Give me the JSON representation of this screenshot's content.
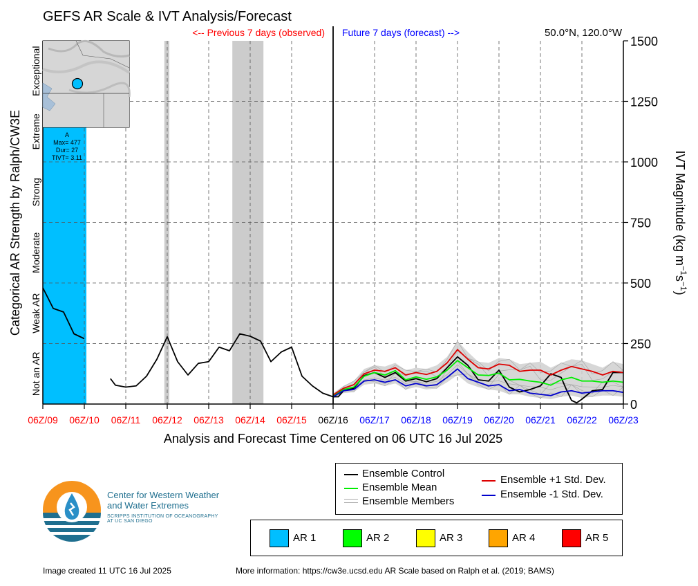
{
  "header": {
    "title": "GEFS AR Scale & IVT Analysis/Forecast",
    "prev_label": "<-- Previous 7 days (observed)",
    "future_label": "Future 7 days (forecast) -->",
    "location": "50.0°N, 120.0°W"
  },
  "colors": {
    "observed": "#ff0000",
    "forecast": "#0000ff",
    "ar1": "#00bfff",
    "ar2": "#00ff00",
    "ar3": "#ffff00",
    "ar4": "#ffa500",
    "ar5": "#ff0000",
    "shade": "#cccccc",
    "control": "#000000",
    "mean": "#00ee00",
    "plus_sd": "#dd0000",
    "minus_sd": "#0000cc",
    "members": "#aaaaaa"
  },
  "chart_data": {
    "type": "line",
    "xlabel": "Analysis and Forecast Time Centered on 06 UTC 16 Jul 2025",
    "ylabel_left": "Categorical AR Strength by Ralph/CW3E",
    "ylabel_right": "IVT Magnitude (kg m^-1 s^-1)",
    "ylim": [
      0,
      1500
    ],
    "xlim": [
      0,
      14
    ],
    "y_ticks": [
      0,
      250,
      500,
      750,
      1000,
      1250,
      1500
    ],
    "x_ticks": [
      {
        "x": 0,
        "label": "06Z/09",
        "kind": "observed"
      },
      {
        "x": 1,
        "label": "06Z/10",
        "kind": "observed"
      },
      {
        "x": 2,
        "label": "06Z/11",
        "kind": "observed"
      },
      {
        "x": 3,
        "label": "06Z/12",
        "kind": "observed"
      },
      {
        "x": 4,
        "label": "06Z/13",
        "kind": "observed"
      },
      {
        "x": 5,
        "label": "06Z/14",
        "kind": "observed"
      },
      {
        "x": 6,
        "label": "06Z/15",
        "kind": "observed"
      },
      {
        "x": 7,
        "label": "06Z/16",
        "kind": "now"
      },
      {
        "x": 8,
        "label": "06Z/17",
        "kind": "forecast"
      },
      {
        "x": 9,
        "label": "06Z/18",
        "kind": "forecast"
      },
      {
        "x": 10,
        "label": "06Z/19",
        "kind": "forecast"
      },
      {
        "x": 11,
        "label": "06Z/20",
        "kind": "forecast"
      },
      {
        "x": 12,
        "label": "06Z/21",
        "kind": "forecast"
      },
      {
        "x": 13,
        "label": "06Z/22",
        "kind": "forecast"
      },
      {
        "x": 14,
        "label": "06Z/23",
        "kind": "forecast"
      }
    ],
    "categories": [
      {
        "label": "Not an AR",
        "ymin": 0,
        "ymax": 250
      },
      {
        "label": "Weak AR",
        "ymin": 250,
        "ymax": 500
      },
      {
        "label": "Moderate",
        "ymin": 500,
        "ymax": 750
      },
      {
        "label": "Strong",
        "ymin": 750,
        "ymax": 1000
      },
      {
        "label": "Extreme",
        "ymin": 1000,
        "ymax": 1250
      },
      {
        "label": "Exceptional",
        "ymin": 1250,
        "ymax": 1500
      }
    ],
    "ar_event": {
      "level": "AR 1",
      "x_start": 0,
      "x_end": 1.05,
      "label_lines": [
        "A",
        "Max= 477",
        "Dur= 27",
        "TIVT= 3.11"
      ]
    },
    "shaded_periods": [
      {
        "x_start": 2.93,
        "x_end": 3.05
      },
      {
        "x_start": 4.57,
        "x_end": 5.32
      }
    ],
    "now_x": 7,
    "series": [
      {
        "name": "Ensemble Control",
        "color": "#000000",
        "segments": [
          {
            "x": [
              0,
              0.25,
              0.5,
              0.75,
              1.0
            ],
            "y": [
              480,
              395,
              380,
              290,
              270
            ]
          },
          {
            "x": [
              1.63,
              1.75,
              2.0,
              2.25,
              2.5,
              2.75,
              3.0,
              3.25,
              3.5,
              3.75,
              4.0,
              4.25,
              4.5,
              4.75,
              5.0,
              5.25,
              5.5,
              5.75,
              6.0,
              6.25,
              6.5,
              6.75,
              7.0
            ],
            "y": [
              105,
              78,
              70,
              75,
              115,
              185,
              278,
              175,
              120,
              168,
              175,
              235,
              220,
              290,
              280,
              260,
              175,
              215,
              235,
              115,
              75,
              45,
              30
            ]
          }
        ]
      },
      {
        "name": "Ensemble Control (forecast)",
        "color": "#000000",
        "segments": [
          {
            "x": [
              7.0,
              7.125,
              7.25,
              7.5,
              7.75,
              8.0,
              8.25,
              8.5,
              8.75,
              9.0,
              9.25,
              9.5,
              9.75,
              10.0,
              10.25,
              10.5,
              10.75,
              11.0,
              11.25,
              11.5,
              11.75,
              12.0,
              12.25,
              12.5,
              12.625,
              12.75,
              12.875,
              13.0,
              13.25,
              13.5,
              13.75,
              14.0
            ],
            "y": [
              30,
              30,
              55,
              65,
              118,
              130,
              110,
              130,
              95,
              105,
              92,
              105,
              150,
              195,
              160,
              100,
              95,
              140,
              70,
              50,
              60,
              75,
              125,
              110,
              60,
              15,
              5,
              20,
              55,
              60,
              130,
              130
            ]
          }
        ]
      },
      {
        "name": "Ensemble Mean",
        "color": "#00ee00",
        "segments": [
          {
            "x": [
              7.0,
              7.25,
              7.5,
              7.75,
              8.0,
              8.25,
              8.5,
              8.75,
              9.0,
              9.25,
              9.5,
              9.75,
              10.0,
              10.25,
              10.5,
              10.75,
              11.0,
              11.25,
              11.5,
              11.75,
              12.0,
              12.25,
              12.5,
              12.75,
              13.0,
              13.25,
              13.5,
              13.75,
              14.0
            ],
            "y": [
              35,
              60,
              70,
              115,
              130,
              120,
              138,
              100,
              112,
              102,
              112,
              140,
              180,
              150,
              120,
              118,
              128,
              100,
              102,
              95,
              90,
              78,
              100,
              110,
              95,
              95,
              90,
              95,
              90
            ]
          }
        ]
      },
      {
        "name": "Ensemble +1 Std. Dev.",
        "color": "#dd0000",
        "segments": [
          {
            "x": [
              7.0,
              7.25,
              7.5,
              7.75,
              8.0,
              8.25,
              8.5,
              8.75,
              9.0,
              9.25,
              9.5,
              9.75,
              10.0,
              10.25,
              10.5,
              10.75,
              11.0,
              11.25,
              11.5,
              11.75,
              12.0,
              12.25,
              12.5,
              12.75,
              13.0,
              13.25,
              13.5,
              13.75,
              14.0
            ],
            "y": [
              38,
              65,
              80,
              125,
              140,
              135,
              150,
              120,
              130,
              122,
              135,
              170,
              225,
              185,
              150,
              145,
              165,
              160,
              135,
              140,
              140,
              120,
              140,
              155,
              145,
              135,
              120,
              135,
              130
            ]
          }
        ]
      },
      {
        "name": "Ensemble -1 Std. Dev.",
        "color": "#0000cc",
        "segments": [
          {
            "x": [
              7.0,
              7.25,
              7.5,
              7.75,
              8.0,
              8.25,
              8.5,
              8.75,
              9.0,
              9.25,
              9.5,
              9.75,
              10.0,
              10.25,
              10.5,
              10.75,
              11.0,
              11.25,
              11.5,
              11.75,
              12.0,
              12.25,
              12.5,
              12.75,
              13.0,
              13.25,
              13.5,
              13.75,
              14.0
            ],
            "y": [
              30,
              55,
              60,
              95,
              100,
              90,
              100,
              75,
              85,
              75,
              80,
              110,
              145,
              105,
              90,
              75,
              80,
              55,
              60,
              45,
              40,
              35,
              50,
              55,
              45,
              50,
              55,
              55,
              48
            ]
          }
        ]
      }
    ],
    "members_envelope": {
      "x": [
        7.0,
        7.25,
        7.5,
        7.75,
        8.0,
        8.25,
        8.5,
        8.75,
        9.0,
        9.25,
        9.5,
        9.75,
        10.0,
        10.25,
        10.5,
        10.75,
        11.0,
        11.25,
        11.5,
        11.75,
        12.0,
        12.25,
        12.5,
        12.75,
        13.0,
        13.25,
        13.5,
        13.75,
        14.0
      ],
      "low": [
        25,
        45,
        50,
        80,
        85,
        75,
        85,
        60,
        70,
        60,
        65,
        90,
        120,
        85,
        70,
        60,
        55,
        40,
        40,
        30,
        25,
        20,
        30,
        35,
        25,
        30,
        35,
        35,
        30
      ],
      "high": [
        45,
        75,
        95,
        145,
        160,
        155,
        170,
        140,
        150,
        145,
        160,
        195,
        260,
        215,
        175,
        170,
        190,
        185,
        165,
        170,
        175,
        150,
        170,
        185,
        180,
        165,
        150,
        175,
        165
      ]
    }
  },
  "legend": {
    "control": "Ensemble Control",
    "mean": "Ensemble Mean",
    "members": "Ensemble Members",
    "plus_sd": "Ensemble +1 Std. Dev.",
    "minus_sd": "Ensemble -1 Std. Dev."
  },
  "ar_legend": [
    "AR 1",
    "AR 2",
    "AR 3",
    "AR 4",
    "AR 5"
  ],
  "logo": {
    "line1": "Center for Western Weather",
    "line2": "and Water Extremes",
    "line3": "SCRIPPS INSTITUTION OF OCEANOGRAPHY",
    "line4": "AT UC SAN DIEGO"
  },
  "footer": {
    "created": "Image created 11 UTC 16 Jul 2025",
    "more_info": "More information: https://cw3e.ucsd.edu AR Scale based on Ralph et al. (2019; BAMS)"
  }
}
